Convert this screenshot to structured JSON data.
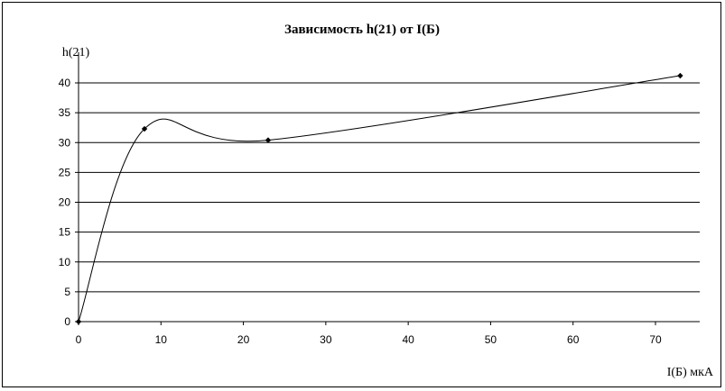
{
  "chart_data": {
    "type": "line",
    "title": "Зависимость h(21) от I(Б)",
    "xlabel": "I(Б) мкА",
    "ylabel": "h(21)",
    "xlim": [
      0,
      73
    ],
    "ylim": [
      0,
      40
    ],
    "x_ticks": [
      0,
      10,
      20,
      30,
      40,
      50,
      60,
      70
    ],
    "y_ticks": [
      0,
      5,
      10,
      15,
      20,
      25,
      30,
      35,
      40
    ],
    "grid": "horizontal",
    "legend": "none",
    "series": [
      {
        "points": [
          {
            "x": 0,
            "y": 0
          },
          {
            "x": 8,
            "y": 32.3
          },
          {
            "x": 23,
            "y": 30.4
          },
          {
            "x": 73,
            "y": 41.2
          }
        ]
      }
    ],
    "line_color": "#000000"
  }
}
